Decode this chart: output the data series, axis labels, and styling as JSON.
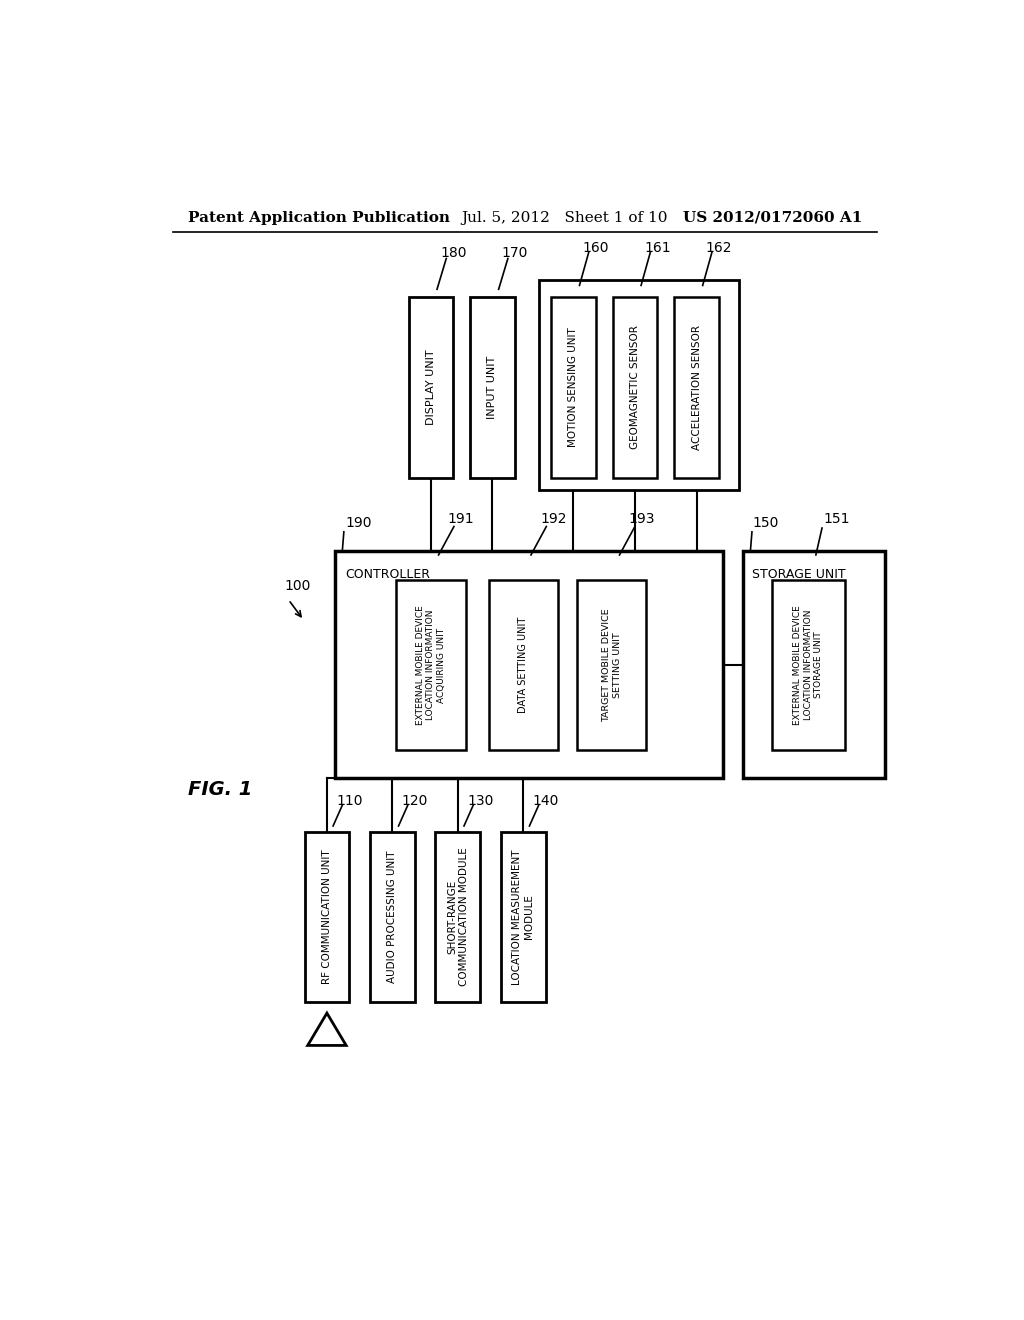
{
  "bg_color": "#ffffff",
  "header_left": "Patent Application Publication",
  "header_mid": "Jul. 5, 2012   Sheet 1 of 10",
  "header_right": "US 2012/0172060 A1"
}
